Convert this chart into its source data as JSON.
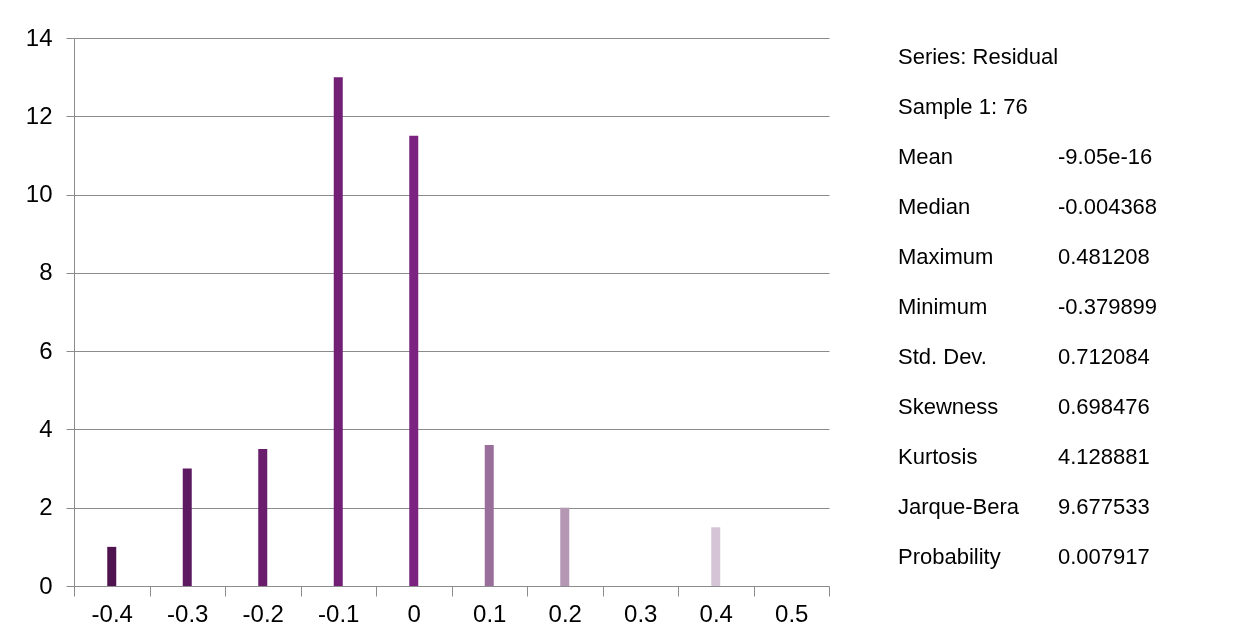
{
  "chart_data": {
    "type": "bar",
    "categories": [
      "-0.4",
      "-0.3",
      "-0.2",
      "-0.1",
      "0",
      "0.1",
      "0.2",
      "0.3",
      "0.4",
      "0.5"
    ],
    "values": [
      1,
      3,
      3.5,
      13,
      11.5,
      3.6,
      2,
      null,
      1.5,
      null
    ],
    "colors": [
      "#4f1450",
      "#5e1a60",
      "#6a1d6c",
      "#721f75",
      "#7b2380",
      "#9a6e9a",
      "#b397b3",
      "#c9b4c9",
      "#d4c4d6",
      "#dcd0dd"
    ],
    "ylim": [
      0,
      14
    ],
    "yticks": [
      0,
      2,
      4,
      6,
      8,
      10,
      12,
      14
    ],
    "grid": "y",
    "annotations": [
      "Series: Residual",
      "Sample 1: 76",
      "Mean",
      "-9.05e-16",
      "Median",
      "-0.004368",
      "Maximum",
      "0.481208",
      "Minimum",
      "-0.379899",
      "Std. Dev.",
      "0.712084",
      "Skewness",
      "0.698476",
      "Kurtosis",
      "4.128881",
      "Jarque-Bera",
      "9.677533",
      "Probability",
      "0.007917"
    ]
  }
}
